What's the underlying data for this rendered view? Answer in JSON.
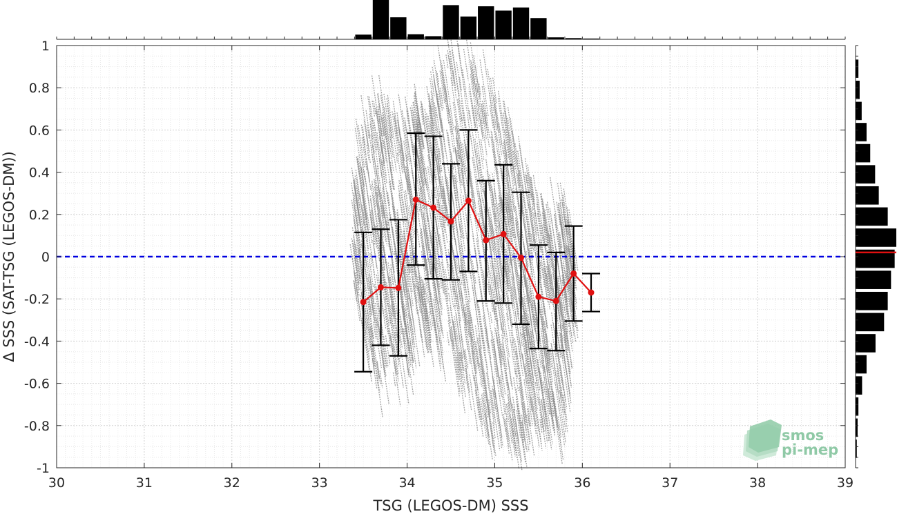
{
  "chart_data": {
    "type": "scatter",
    "title": "",
    "xlabel": "TSG (LEGOS-DM) SSS",
    "ylabel": "Δ SSS (SAT-TSG (LEGOS-DM))",
    "xlim": [
      30,
      39
    ],
    "ylim": [
      -1,
      1
    ],
    "x_ticks": [
      "30",
      "31",
      "32",
      "33",
      "34",
      "35",
      "36",
      "37",
      "38",
      "39"
    ],
    "y_ticks": [
      "-1",
      "-0.8",
      "-0.6",
      "-0.4",
      "-0.2",
      "0",
      "0.2",
      "0.4",
      "0.6",
      "0.8",
      "1"
    ],
    "grid": true,
    "zero_line": {
      "y": 0,
      "style": "dashed",
      "color": "#0000e0"
    },
    "binned_mean": {
      "color": "#e01010",
      "x": [
        33.5,
        33.7,
        33.9,
        34.1,
        34.3,
        34.5,
        34.7,
        34.9,
        35.1,
        35.3,
        35.5,
        35.7,
        35.9,
        36.1
      ],
      "mean": [
        -0.215,
        -0.145,
        -0.148,
        0.27,
        0.232,
        0.167,
        0.265,
        0.078,
        0.107,
        -0.005,
        -0.19,
        -0.21,
        -0.08,
        -0.17
      ],
      "upper": [
        0.115,
        0.13,
        0.175,
        0.585,
        0.57,
        0.44,
        0.6,
        0.36,
        0.435,
        0.305,
        0.055,
        0.02,
        0.145,
        -0.08
      ],
      "lower": [
        -0.545,
        -0.42,
        -0.47,
        -0.04,
        -0.105,
        -0.11,
        -0.07,
        -0.21,
        -0.22,
        -0.32,
        -0.435,
        -0.445,
        -0.305,
        -0.26
      ]
    },
    "scatter_color": "#8a8a8a",
    "scatter_envelope": [
      {
        "x": 33.4,
        "ymin": -0.15,
        "ymax": 0.4
      },
      {
        "x": 33.6,
        "ymin": -0.6,
        "ymax": 0.8
      },
      {
        "x": 33.8,
        "ymin": -0.6,
        "ymax": 0.7
      },
      {
        "x": 34.0,
        "ymin": -0.55,
        "ymax": 0.6
      },
      {
        "x": 34.2,
        "ymin": -0.4,
        "ymax": 0.75
      },
      {
        "x": 34.4,
        "ymin": -0.45,
        "ymax": 0.95
      },
      {
        "x": 34.6,
        "ymin": -0.6,
        "ymax": 0.95
      },
      {
        "x": 34.8,
        "ymin": -0.75,
        "ymax": 0.9
      },
      {
        "x": 35.0,
        "ymin": -0.85,
        "ymax": 0.8
      },
      {
        "x": 35.2,
        "ymin": -0.9,
        "ymax": 0.6
      },
      {
        "x": 35.4,
        "ymin": -0.85,
        "ymax": 0.35
      },
      {
        "x": 35.6,
        "ymin": -0.8,
        "ymax": 0.2
      },
      {
        "x": 35.8,
        "ymin": -0.85,
        "ymax": 0.3
      },
      {
        "x": 35.9,
        "ymin": -0.3,
        "ymax": 0.1
      }
    ],
    "top_histogram": {
      "bin_centers": [
        33.5,
        33.7,
        33.9,
        34.1,
        34.3,
        34.5,
        34.7,
        34.9,
        35.1,
        35.3,
        35.5,
        35.7,
        35.9,
        36.1
      ],
      "relative_counts": [
        0.12,
        1.0,
        0.56,
        0.13,
        0.08,
        0.87,
        0.58,
        0.84,
        0.73,
        0.81,
        0.54,
        0.05,
        0.03,
        0.02
      ]
    },
    "right_histogram": {
      "bin_centers": [
        0.89,
        0.79,
        0.69,
        0.59,
        0.49,
        0.39,
        0.29,
        0.19,
        0.09,
        -0.01,
        -0.11,
        -0.21,
        -0.31,
        -0.41,
        -0.51,
        -0.61,
        -0.71,
        -0.81,
        -0.91
      ],
      "relative_counts": [
        0.07,
        0.1,
        0.15,
        0.27,
        0.36,
        0.48,
        0.57,
        0.79,
        1.0,
        0.96,
        0.87,
        0.79,
        0.7,
        0.49,
        0.27,
        0.16,
        0.07,
        0.05,
        0.03
      ],
      "median_marker": 0.02,
      "median_color": "#e01010"
    }
  },
  "logo": {
    "line1": "smos",
    "line2": "pi-mep"
  }
}
